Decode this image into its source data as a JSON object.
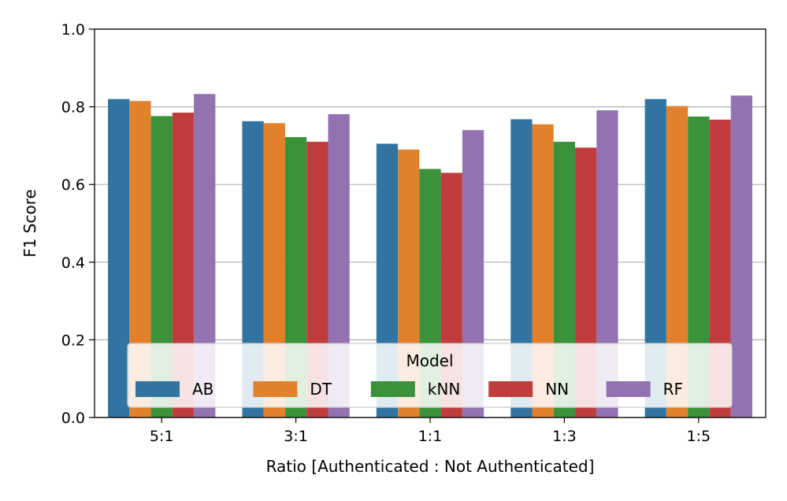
{
  "chart_data": {
    "type": "bar",
    "title": "",
    "xlabel": "Ratio [Authenticated : Not Authenticated]",
    "ylabel": "F1 Score",
    "ylim": [
      0,
      1.0
    ],
    "yticks": [
      0.0,
      0.2,
      0.4,
      0.6,
      0.8,
      1.0
    ],
    "ytick_labels": [
      "0.0",
      "0.2",
      "0.4",
      "0.6",
      "0.8",
      "1.0"
    ],
    "grid": "horizontal",
    "categories": [
      "5:1",
      "3:1",
      "1:1",
      "1:3",
      "1:5"
    ],
    "legend": {
      "title": "Model",
      "placement": "lower-center"
    },
    "series": [
      {
        "name": "AB",
        "color": "#3274a1",
        "values": [
          0.82,
          0.763,
          0.705,
          0.768,
          0.82
        ]
      },
      {
        "name": "DT",
        "color": "#e1812c",
        "values": [
          0.815,
          0.758,
          0.69,
          0.755,
          0.802
        ]
      },
      {
        "name": "kNN",
        "color": "#3a923a",
        "values": [
          0.776,
          0.722,
          0.64,
          0.71,
          0.775
        ]
      },
      {
        "name": "NN",
        "color": "#c03d3e",
        "values": [
          0.785,
          0.71,
          0.63,
          0.695,
          0.767
        ]
      },
      {
        "name": "RF",
        "color": "#9372b2",
        "values": [
          0.833,
          0.781,
          0.74,
          0.791,
          0.829
        ]
      }
    ]
  }
}
